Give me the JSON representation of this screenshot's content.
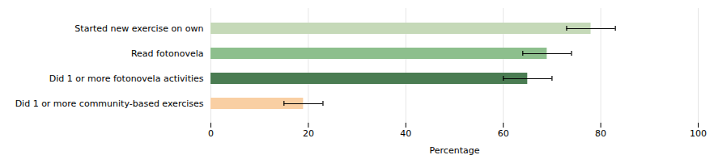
{
  "chart_data": {
    "type": "bar",
    "orientation": "horizontal",
    "categories": [
      "Did 1 or more community-based exercises",
      "Did 1 or more fotonovela activities",
      "Read fotonovela",
      "Started new exercise on own"
    ],
    "values": [
      19,
      65,
      69,
      78
    ],
    "errors": [
      4,
      5,
      5,
      5
    ],
    "colors": [
      "#f9cfa3",
      "#4a7c52",
      "#8dbf8d",
      "#c5d9b8"
    ],
    "xlabel": "Percentage",
    "xlim": [
      0,
      100
    ],
    "xticks": [
      0,
      20,
      40,
      60,
      80,
      100
    ],
    "grid": true
  }
}
